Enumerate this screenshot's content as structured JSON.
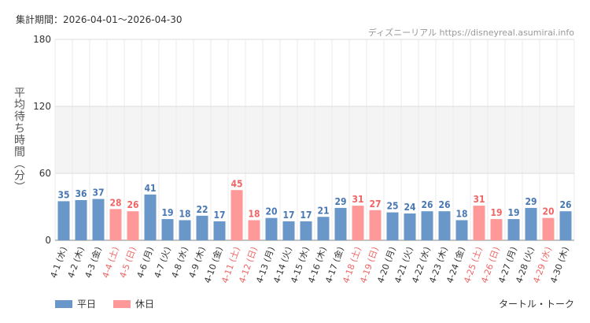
{
  "header": {
    "period": "集計期間：2026-04-01～2026-04-30",
    "source": "ディズニーリアル https://disneyreal.asumirai.info"
  },
  "footer": {
    "attraction": "タートル・トーク"
  },
  "colors": {
    "weekday": "#6a97c9",
    "holiday": "#ff9999",
    "weekday_label": "#4a78b3",
    "holiday_label": "#ee6666",
    "band": "#f4f4f4"
  },
  "chart_data": {
    "type": "bar",
    "ylabel": "平均待ち時間（分）",
    "ylim": [
      0,
      180
    ],
    "yticks": [
      0,
      60,
      120,
      180
    ],
    "shaded_bands": [
      [
        60,
        120
      ]
    ],
    "grid": true,
    "legend": [
      {
        "name": "平日",
        "type": "weekday"
      },
      {
        "name": "休日",
        "type": "holiday"
      }
    ],
    "legend_position": "bottom-left",
    "categories": [
      "4-1 (水)",
      "4-2 (木)",
      "4-3 (金)",
      "4-4 (土)",
      "4-5 (日)",
      "4-6 (月)",
      "4-7 (火)",
      "4-8 (水)",
      "4-9 (木)",
      "4-10 (金)",
      "4-11 (土)",
      "4-12 (日)",
      "4-13 (月)",
      "4-14 (火)",
      "4-15 (水)",
      "4-16 (木)",
      "4-17 (金)",
      "4-18 (土)",
      "4-19 (日)",
      "4-20 (月)",
      "4-21 (火)",
      "4-22 (水)",
      "4-23 (木)",
      "4-24 (金)",
      "4-25 (土)",
      "4-26 (日)",
      "4-27 (月)",
      "4-28 (火)",
      "4-29 (水)",
      "4-30 (木)"
    ],
    "values": [
      35,
      36,
      37,
      28,
      26,
      41,
      19,
      18,
      22,
      17,
      45,
      18,
      20,
      17,
      17,
      21,
      29,
      31,
      27,
      25,
      24,
      26,
      26,
      18,
      31,
      19,
      19,
      29,
      20,
      26
    ],
    "day_types": [
      "weekday",
      "weekday",
      "weekday",
      "holiday",
      "holiday",
      "weekday",
      "weekday",
      "weekday",
      "weekday",
      "weekday",
      "holiday",
      "holiday",
      "weekday",
      "weekday",
      "weekday",
      "weekday",
      "weekday",
      "holiday",
      "holiday",
      "weekday",
      "weekday",
      "weekday",
      "weekday",
      "weekday",
      "holiday",
      "holiday",
      "weekday",
      "weekday",
      "holiday",
      "weekday"
    ]
  }
}
